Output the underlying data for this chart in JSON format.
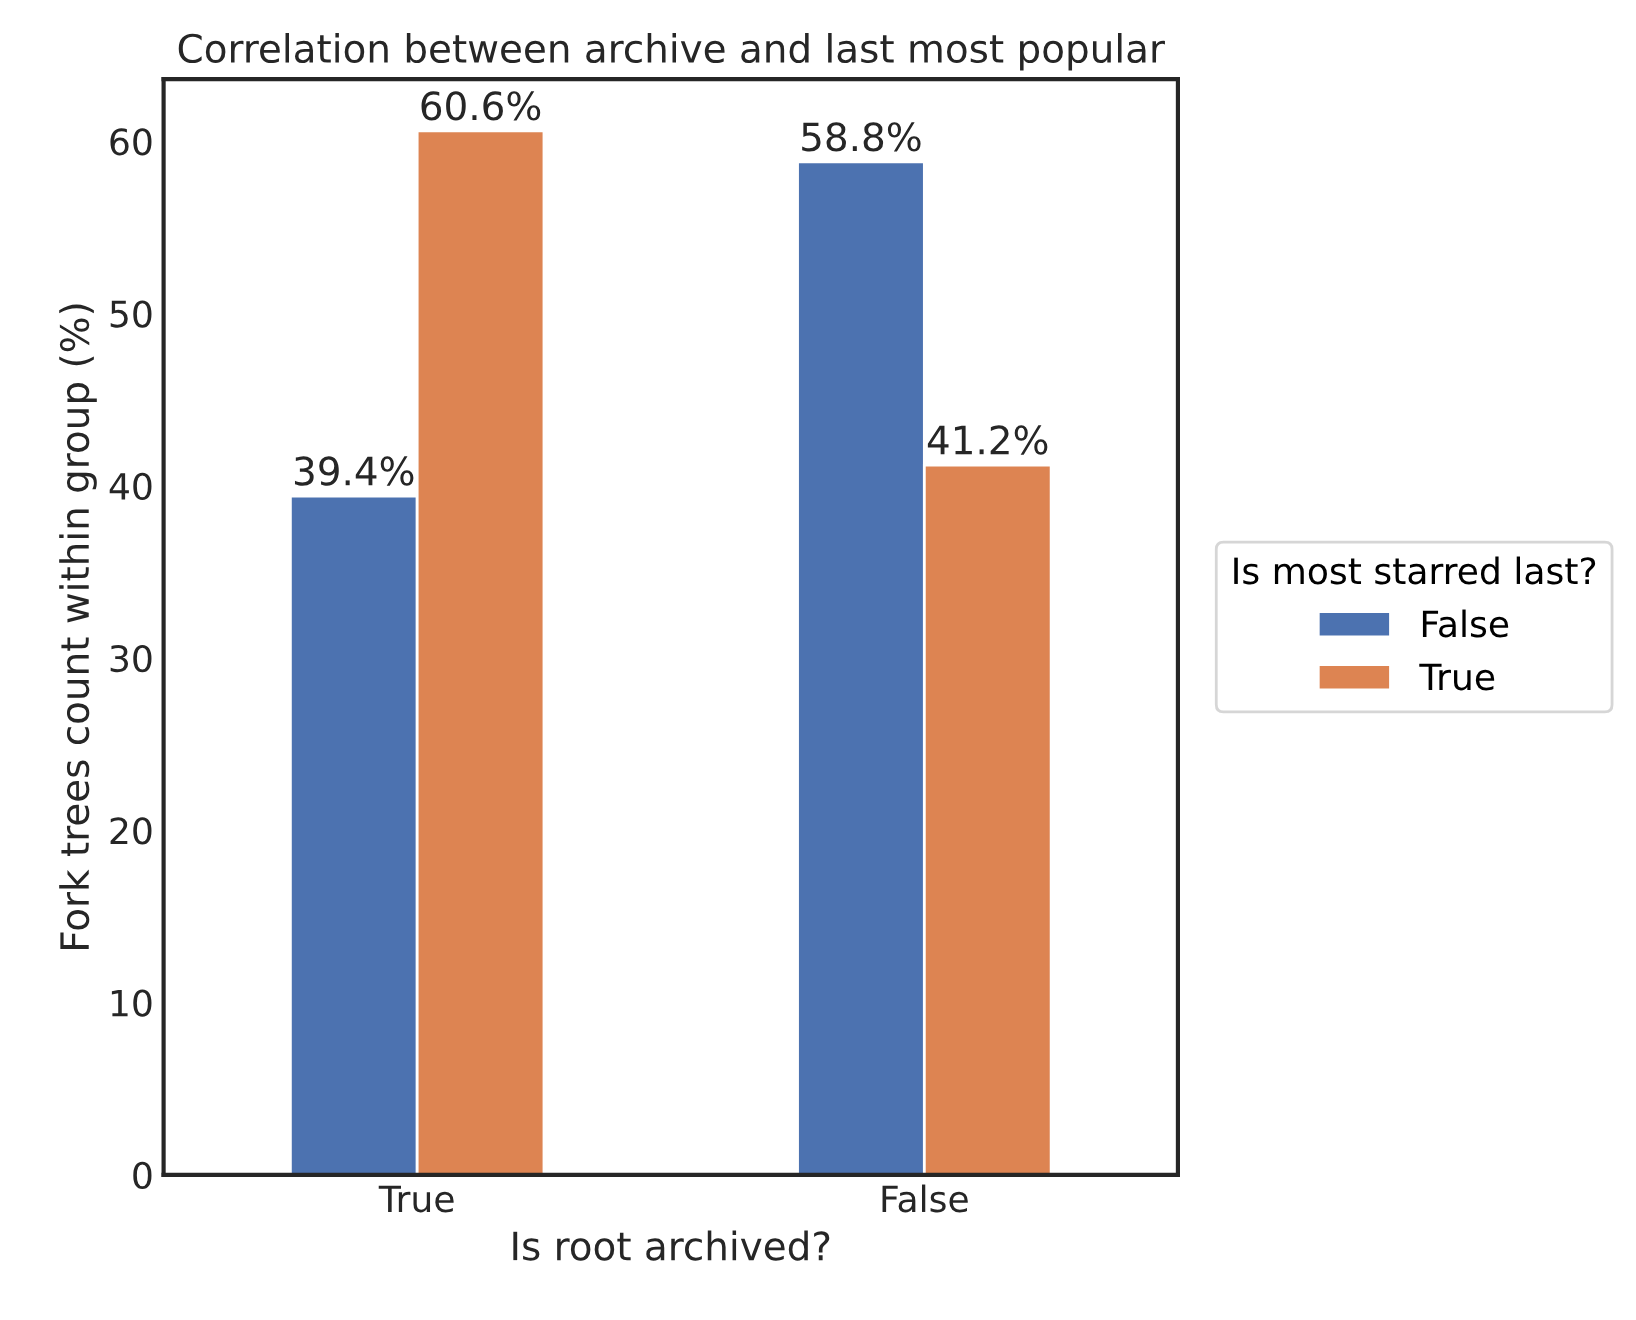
{
  "chart_data": {
    "type": "bar",
    "title": "Correlation between archive and last most popular",
    "xlabel": "Is root archived?",
    "ylabel": "Fork trees count within group (%)",
    "categories": [
      "True",
      "False"
    ],
    "series": [
      {
        "name": "False",
        "color": "#4c72b0",
        "values": [
          39.4,
          58.8
        ],
        "value_labels": [
          "39.4%",
          "58.8%"
        ]
      },
      {
        "name": "True",
        "color": "#dd8452",
        "values": [
          60.6,
          41.2
        ],
        "value_labels": [
          "60.6%",
          "41.2%"
        ]
      }
    ],
    "legend_title": "Is most starred last?",
    "legend": "right",
    "ylim": [
      0,
      63.6
    ],
    "yticks": [
      0,
      10,
      20,
      30,
      40,
      50,
      60
    ],
    "grid": false
  }
}
